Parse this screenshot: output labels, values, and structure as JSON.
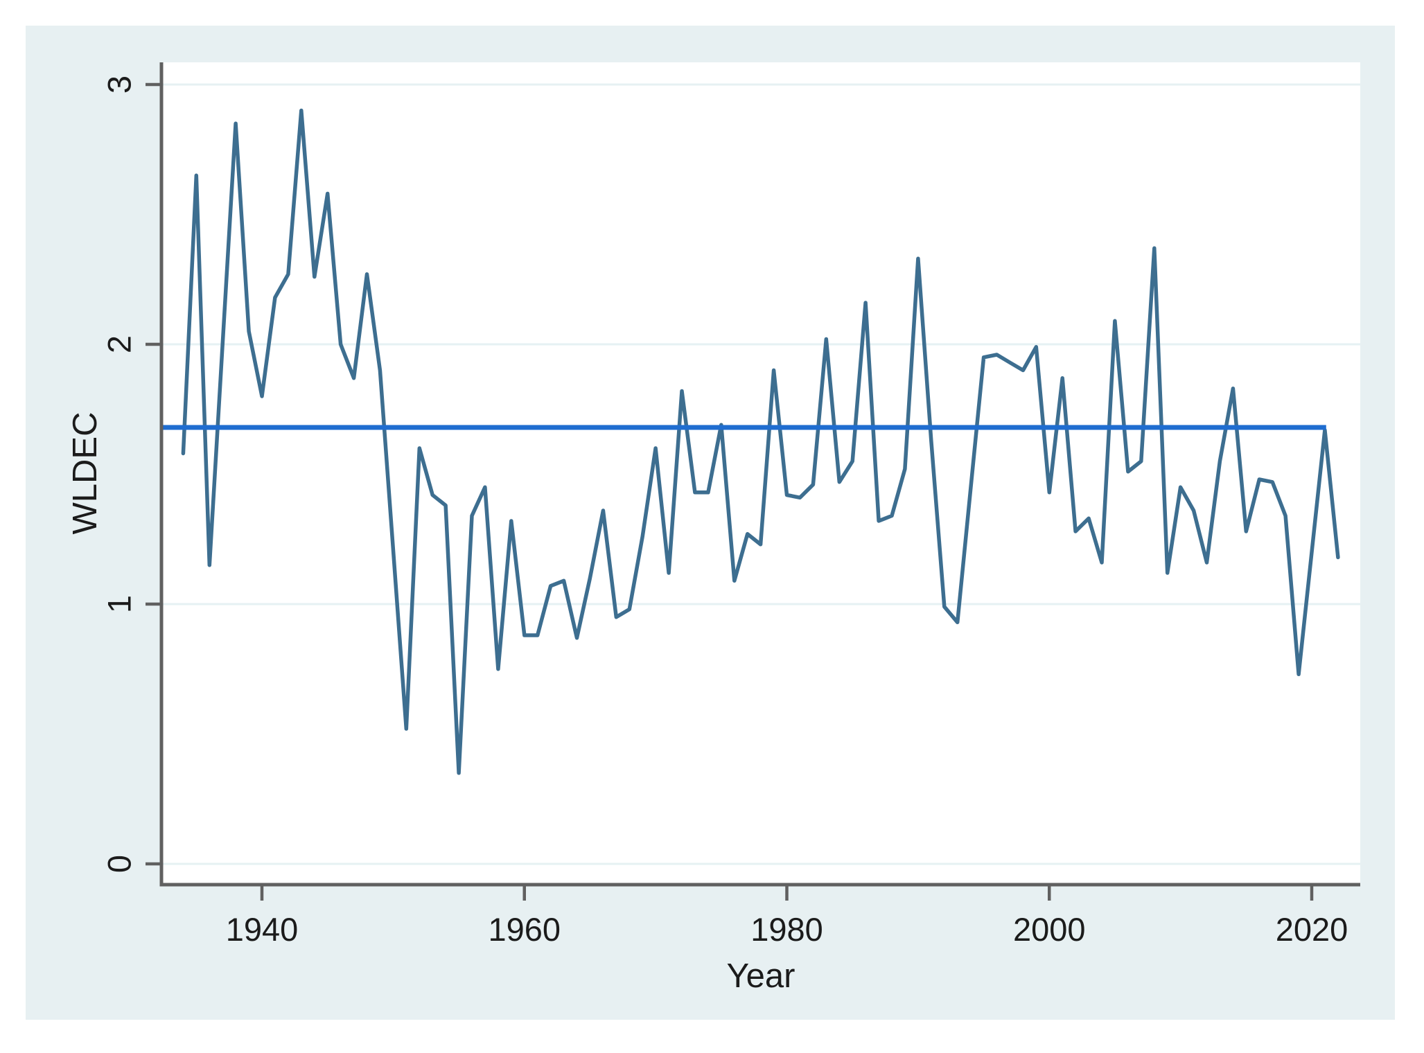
{
  "figure": {
    "background": "#ffffff",
    "canvas_color": "#e7f0f2",
    "plot_bg": "#ffffff",
    "gridline_color": "#e6f1f3",
    "axis_color": "#606060",
    "text_color": "#1b1b1b"
  },
  "chart_data": {
    "type": "line",
    "title": "",
    "xlabel": "Year",
    "ylabel": "WLDEC",
    "ylim": [
      0,
      3
    ],
    "y_ticks": [
      0,
      1,
      2,
      3
    ],
    "x_ticks": [
      1940,
      1960,
      1980,
      2000,
      2020
    ],
    "x_axis_range": [
      1932.3,
      2023.7
    ],
    "grid": "horizontal",
    "legend": "none",
    "series": [
      {
        "name": "WLDEC",
        "color": "#3d6e90",
        "x_start": 1934,
        "x_step": 1,
        "x_end": 2022,
        "values": [
          1.58,
          2.65,
          1.15,
          2.0,
          2.85,
          2.05,
          1.8,
          2.18,
          2.27,
          2.9,
          2.26,
          2.58,
          2.0,
          1.87,
          2.27,
          1.9,
          1.21,
          0.52,
          1.6,
          1.42,
          1.38,
          0.35,
          1.34,
          1.45,
          0.75,
          1.32,
          0.88,
          0.88,
          1.07,
          1.09,
          0.87,
          1.1,
          1.36,
          0.95,
          0.98,
          1.26,
          1.6,
          1.12,
          1.82,
          1.43,
          1.43,
          1.69,
          1.09,
          1.27,
          1.23,
          1.9,
          1.42,
          1.41,
          1.46,
          2.02,
          1.47,
          1.55,
          2.16,
          1.32,
          1.34,
          1.52,
          2.33,
          1.63,
          0.99,
          0.93,
          1.44,
          1.95,
          1.96,
          1.93,
          1.9,
          1.99,
          1.43,
          1.87,
          1.28,
          1.33,
          1.16,
          2.09,
          1.51,
          1.55,
          2.37,
          1.12,
          1.45,
          1.36,
          1.16,
          1.55,
          1.83,
          1.28,
          1.48,
          1.47,
          1.34,
          0.73,
          1.2,
          1.67,
          1.18
        ]
      }
    ],
    "reference_line": {
      "value": 1.68,
      "color": "#1f6dd0",
      "x_start_year": 1932.3,
      "x_end_year": 2021.1
    }
  }
}
